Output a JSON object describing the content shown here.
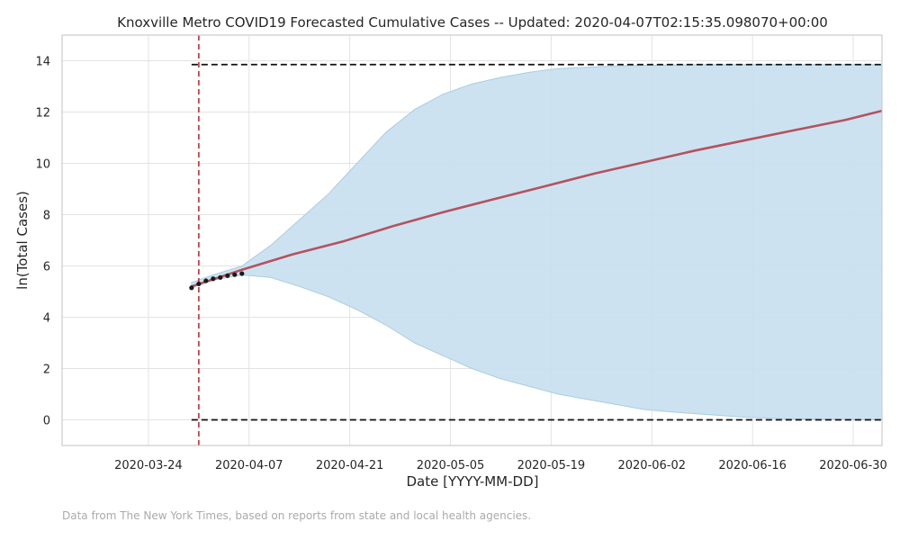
{
  "chart_data": {
    "type": "line",
    "title": "Knoxville Metro COVID19 Forecasted Cumulative Cases -- Updated: 2020-04-07T02:15:35.098070+00:00",
    "xlabel": "Date [YYYY-MM-DD]",
    "ylabel": "ln(Total Cases)",
    "xlim": [
      "2020-03-12",
      "2020-07-04"
    ],
    "ylim": [
      -1,
      15
    ],
    "x_ticks": [
      "2020-03-24",
      "2020-04-07",
      "2020-04-21",
      "2020-05-05",
      "2020-05-19",
      "2020-06-02",
      "2020-06-16",
      "2020-06-30"
    ],
    "y_ticks": [
      0,
      2,
      4,
      6,
      8,
      10,
      12,
      14
    ],
    "grid": true,
    "colors": {
      "forecast": "#b5525e",
      "band": "#c6dfee",
      "band_edge": "#a9cde3",
      "observed": "#1a1a1a",
      "reference": "#c0404a",
      "bound": "#111111"
    },
    "vline_date": "2020-03-31",
    "hlines": [
      0.0,
      13.85
    ],
    "observed": {
      "x": [
        "2020-03-30",
        "2020-03-31",
        "2020-04-01",
        "2020-04-02",
        "2020-04-03",
        "2020-04-04",
        "2020-04-05",
        "2020-04-06"
      ],
      "y": [
        5.15,
        5.3,
        5.42,
        5.5,
        5.55,
        5.62,
        5.66,
        5.7
      ]
    },
    "forecast": {
      "x": [
        "2020-03-30",
        "2020-04-06",
        "2020-04-13",
        "2020-04-20",
        "2020-04-27",
        "2020-05-04",
        "2020-05-11",
        "2020-05-18",
        "2020-05-25",
        "2020-06-01",
        "2020-06-08",
        "2020-06-15",
        "2020-06-22",
        "2020-06-29",
        "2020-07-04"
      ],
      "y": [
        5.2,
        5.85,
        6.45,
        6.95,
        7.55,
        8.1,
        8.6,
        9.1,
        9.6,
        10.05,
        10.5,
        10.9,
        11.3,
        11.7,
        12.05
      ]
    },
    "band": {
      "x": [
        "2020-03-30",
        "2020-04-02",
        "2020-04-06",
        "2020-04-10",
        "2020-04-14",
        "2020-04-18",
        "2020-04-22",
        "2020-04-26",
        "2020-04-30",
        "2020-05-04",
        "2020-05-08",
        "2020-05-12",
        "2020-05-16",
        "2020-05-20",
        "2020-05-24",
        "2020-05-28",
        "2020-06-01",
        "2020-06-05",
        "2020-06-10",
        "2020-06-15",
        "2020-06-20",
        "2020-06-25",
        "2020-07-04"
      ],
      "upper": [
        5.35,
        5.65,
        6.0,
        6.8,
        7.8,
        8.8,
        10.0,
        11.2,
        12.1,
        12.7,
        13.1,
        13.35,
        13.55,
        13.7,
        13.75,
        13.8,
        13.82,
        13.84,
        13.85,
        13.85,
        13.85,
        13.85,
        13.85
      ],
      "lower": [
        5.15,
        5.45,
        5.65,
        5.55,
        5.2,
        4.8,
        4.3,
        3.7,
        3.0,
        2.5,
        2.0,
        1.6,
        1.3,
        1.0,
        0.8,
        0.6,
        0.4,
        0.3,
        0.2,
        0.1,
        0.05,
        0.02,
        0.0
      ]
    }
  },
  "footnote": "Data from The New York Times, based on reports from state and local health agencies."
}
